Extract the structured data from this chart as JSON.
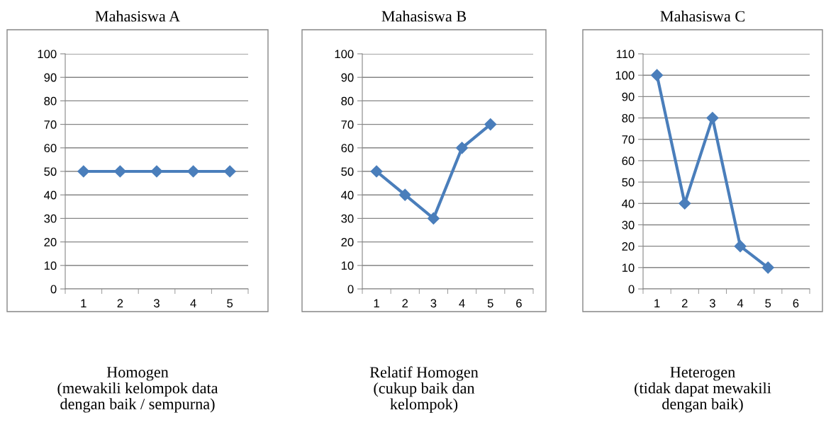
{
  "chart_data": [
    {
      "type": "line",
      "title": "Mahasiswa A",
      "categories": [
        "1",
        "2",
        "3",
        "4",
        "5"
      ],
      "values": [
        50,
        50,
        50,
        50,
        50
      ],
      "color": "#4a7ebb",
      "ylim": [
        0,
        100
      ],
      "yticks": [
        0,
        10,
        20,
        30,
        40,
        50,
        60,
        70,
        80,
        90,
        100
      ],
      "grid": "y",
      "marker": "diamond",
      "line_style": "solid",
      "annotations": [
        "Homogen\n(mewakili kelompok data\ndengan baik / sempurna)"
      ]
    },
    {
      "type": "line",
      "title": "Mahasiswa B",
      "categories": [
        "1",
        "2",
        "3",
        "4",
        "5",
        "6"
      ],
      "values": [
        50,
        40,
        30,
        60,
        70,
        null
      ],
      "color": "#4a7ebb",
      "ylim": [
        0,
        100
      ],
      "yticks": [
        0,
        10,
        20,
        30,
        40,
        50,
        60,
        70,
        80,
        90,
        100
      ],
      "grid": "y",
      "marker": "diamond",
      "line_style": "solid",
      "annotations": [
        "Relatif Homogen\n(cukup baik dan\nkelompok)"
      ]
    },
    {
      "type": "line",
      "title": "Mahasiswa C",
      "categories": [
        "1",
        "2",
        "3",
        "4",
        "5",
        "6"
      ],
      "values": [
        100,
        40,
        80,
        20,
        10,
        null
      ],
      "color": "#4a7ebb",
      "ylim": [
        0,
        110
      ],
      "yticks": [
        0,
        10,
        20,
        30,
        40,
        50,
        60,
        70,
        80,
        90,
        100,
        110
      ],
      "grid": "y",
      "marker": "diamond",
      "line_style": "solid",
      "annotations": [
        "Heterogen\n(tidak dapat mewakili\ndengan baik)"
      ]
    }
  ]
}
